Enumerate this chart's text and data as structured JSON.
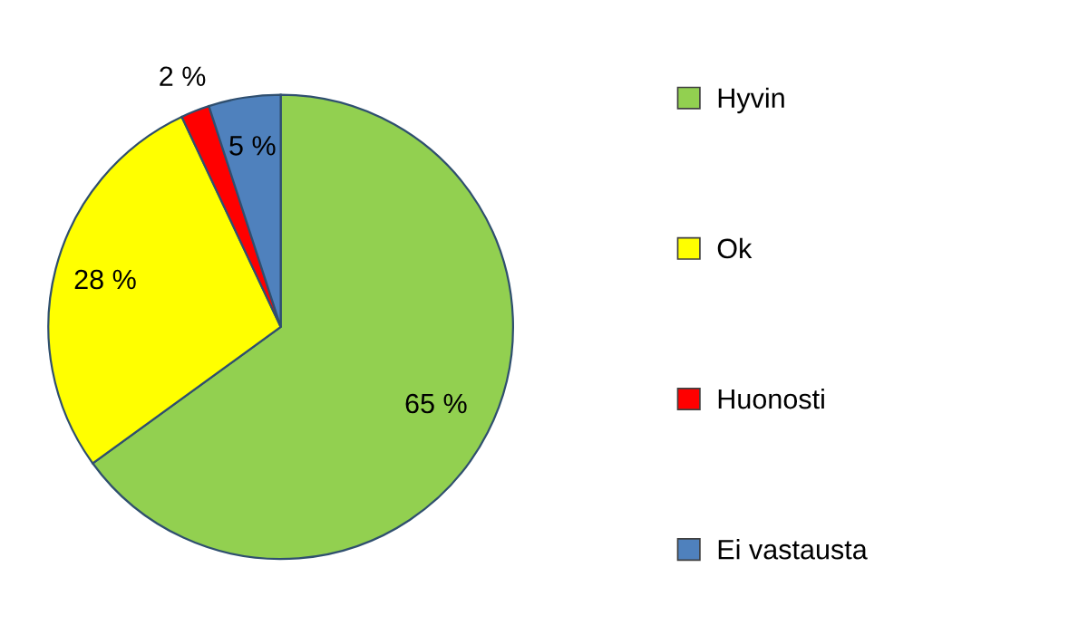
{
  "chart_data": {
    "type": "pie",
    "categories": [
      "Hyvin",
      "Ok",
      "Huonosti",
      "Ei vastausta"
    ],
    "values": [
      65,
      28,
      2,
      5
    ],
    "colors": [
      "#92d050",
      "#ffff00",
      "#ff0000",
      "#4f81bd"
    ],
    "value_labels": [
      "65 %",
      "28 %",
      "2 %",
      "5 %"
    ],
    "legend": "right"
  }
}
